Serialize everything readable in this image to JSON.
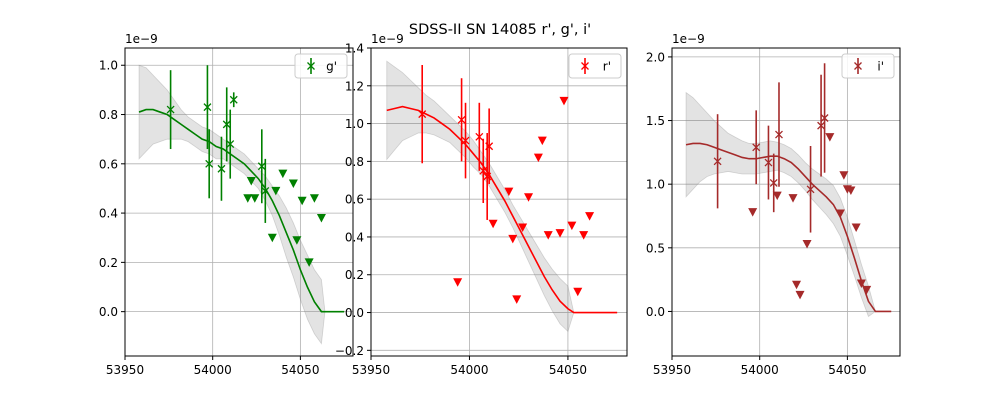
{
  "title": "SDSS-II SN 14085  r', g', i'",
  "chart_data": [
    {
      "type": "scatter",
      "legend": "g'",
      "legend_position": "upper right",
      "color": "#008000",
      "scale_label": "1e−9",
      "grid": true,
      "xlim": [
        53950,
        54080
      ],
      "ylim": [
        -0.18,
        1.07
      ],
      "xticks": [
        53950,
        54000,
        54050
      ],
      "yticks": [
        0.0,
        0.2,
        0.4,
        0.6,
        0.8,
        1.0
      ],
      "ytick_labels": [
        "0.0",
        "0.2",
        "0.4",
        "0.6",
        "0.8",
        "1.0"
      ],
      "detections": [
        {
          "x": 53976,
          "y": 0.82,
          "err": 0.16
        },
        {
          "x": 53997,
          "y": 0.83,
          "err": 0.17
        },
        {
          "x": 53998,
          "y": 0.6,
          "err": 0.14
        },
        {
          "x": 54005,
          "y": 0.58,
          "err": 0.13
        },
        {
          "x": 54008,
          "y": 0.76,
          "err": 0.15
        },
        {
          "x": 54010,
          "y": 0.68,
          "err": 0.14
        },
        {
          "x": 54012,
          "y": 0.86,
          "err": 0.03
        },
        {
          "x": 54028,
          "y": 0.59,
          "err": 0.15
        },
        {
          "x": 54030,
          "y": 0.49,
          "err": 0.13
        }
      ],
      "upper_limits": [
        {
          "x": 54020,
          "y": 0.46
        },
        {
          "x": 54022,
          "y": 0.53
        },
        {
          "x": 54024,
          "y": 0.46
        },
        {
          "x": 54034,
          "y": 0.3
        },
        {
          "x": 54036,
          "y": 0.49
        },
        {
          "x": 54040,
          "y": 0.56
        },
        {
          "x": 54046,
          "y": 0.52
        },
        {
          "x": 54048,
          "y": 0.29
        },
        {
          "x": 54051,
          "y": 0.45
        },
        {
          "x": 54055,
          "y": 0.2
        },
        {
          "x": 54058,
          "y": 0.46
        },
        {
          "x": 54062,
          "y": 0.38
        }
      ],
      "model": {
        "x": [
          53958,
          53962,
          53966,
          53970,
          53974,
          53978,
          53982,
          53986,
          53990,
          53994,
          53998,
          54002,
          54006,
          54010,
          54014,
          54018,
          54022,
          54026,
          54030,
          54034,
          54038,
          54042,
          54046,
          54050,
          54054,
          54058,
          54062,
          54064,
          54068,
          54072,
          54075
        ],
        "y": [
          0.81,
          0.82,
          0.82,
          0.81,
          0.8,
          0.78,
          0.76,
          0.74,
          0.72,
          0.7,
          0.69,
          0.67,
          0.66,
          0.64,
          0.62,
          0.6,
          0.57,
          0.54,
          0.5,
          0.45,
          0.39,
          0.32,
          0.25,
          0.17,
          0.1,
          0.04,
          0.0,
          0.0,
          0.0,
          0.0,
          0.0
        ],
        "band_half_width": [
          0.19,
          0.17,
          0.14,
          0.12,
          0.1,
          0.08,
          0.06,
          0.05,
          0.05,
          0.05,
          0.05,
          0.05,
          0.04,
          0.04,
          0.04,
          0.04,
          0.04,
          0.04,
          0.05,
          0.06,
          0.08,
          0.1,
          0.11,
          0.12,
          0.13,
          0.13,
          0.13,
          0.0,
          0.0,
          0.0,
          0.0
        ]
      }
    },
    {
      "type": "scatter",
      "legend": "r'",
      "legend_position": "upper right",
      "color": "#ff0000",
      "scale_label": "1e−9",
      "grid": true,
      "xlim": [
        53950,
        54080
      ],
      "ylim": [
        -0.23,
        1.4
      ],
      "xticks": [
        53950,
        54000,
        54050
      ],
      "yticks": [
        -0.2,
        0.0,
        0.2,
        0.4,
        0.6,
        0.8,
        1.0,
        1.2,
        1.4
      ],
      "ytick_labels": [
        "−0.2",
        "0.0",
        "0.2",
        "0.4",
        "0.6",
        "0.8",
        "1.0",
        "1.2",
        "1.4"
      ],
      "detections": [
        {
          "x": 53976,
          "y": 1.05,
          "err": 0.26
        },
        {
          "x": 53996,
          "y": 1.02,
          "err": 0.22
        },
        {
          "x": 53998,
          "y": 0.91,
          "err": 0.2
        },
        {
          "x": 54005,
          "y": 0.93,
          "err": 0.18
        },
        {
          "x": 54007,
          "y": 0.75,
          "err": 0.17
        },
        {
          "x": 54009,
          "y": 0.72,
          "err": 0.23
        },
        {
          "x": 54010,
          "y": 0.88,
          "err": 0.2
        }
      ],
      "upper_limits": [
        {
          "x": 53994,
          "y": 0.16
        },
        {
          "x": 54012,
          "y": 0.47
        },
        {
          "x": 54020,
          "y": 0.64
        },
        {
          "x": 54022,
          "y": 0.39
        },
        {
          "x": 54024,
          "y": 0.07
        },
        {
          "x": 54027,
          "y": 0.45
        },
        {
          "x": 54030,
          "y": 0.61
        },
        {
          "x": 54035,
          "y": 0.82
        },
        {
          "x": 54037,
          "y": 0.91
        },
        {
          "x": 54040,
          "y": 0.41
        },
        {
          "x": 54046,
          "y": 0.42
        },
        {
          "x": 54048,
          "y": 1.12
        },
        {
          "x": 54052,
          "y": 0.46
        },
        {
          "x": 54055,
          "y": 0.11
        },
        {
          "x": 54058,
          "y": 0.41
        },
        {
          "x": 54061,
          "y": 0.51
        }
      ],
      "model": {
        "x": [
          53958,
          53962,
          53966,
          53970,
          53974,
          53978,
          53982,
          53986,
          53990,
          53994,
          53998,
          54002,
          54006,
          54010,
          54014,
          54018,
          54022,
          54026,
          54030,
          54034,
          54038,
          54042,
          54046,
          54050,
          54053,
          54056,
          54060,
          54064,
          54068,
          54072,
          54075
        ],
        "y": [
          1.07,
          1.08,
          1.09,
          1.08,
          1.07,
          1.05,
          1.03,
          1.0,
          0.97,
          0.93,
          0.89,
          0.84,
          0.79,
          0.73,
          0.66,
          0.59,
          0.51,
          0.43,
          0.35,
          0.27,
          0.19,
          0.12,
          0.06,
          0.02,
          0.0,
          0.0,
          0.0,
          0.0,
          0.0,
          0.0,
          0.0
        ],
        "band_half_width": [
          0.26,
          0.22,
          0.18,
          0.15,
          0.12,
          0.1,
          0.09,
          0.08,
          0.07,
          0.07,
          0.07,
          0.07,
          0.06,
          0.06,
          0.06,
          0.06,
          0.06,
          0.07,
          0.08,
          0.09,
          0.1,
          0.11,
          0.12,
          0.12,
          0.0,
          0.0,
          0.0,
          0.0,
          0.0,
          0.0,
          0.0
        ]
      }
    },
    {
      "type": "scatter",
      "legend": "i'",
      "legend_position": "upper right",
      "color": "#a52a2a",
      "scale_label": "1e−9",
      "grid": true,
      "xlim": [
        53950,
        54080
      ],
      "ylim": [
        -0.35,
        2.07
      ],
      "xticks": [
        53950,
        54000,
        54050
      ],
      "yticks": [
        0.0,
        0.5,
        1.0,
        1.5,
        2.0
      ],
      "ytick_labels": [
        "0.0",
        "0.5",
        "1.0",
        "1.5",
        "2.0"
      ],
      "detections": [
        {
          "x": 53976,
          "y": 1.18,
          "err": 0.37
        },
        {
          "x": 53998,
          "y": 1.29,
          "err": 0.29
        },
        {
          "x": 54005,
          "y": 1.17,
          "err": 0.29
        },
        {
          "x": 54008,
          "y": 1.01,
          "err": 0.23
        },
        {
          "x": 54011,
          "y": 1.39,
          "err": 0.41
        },
        {
          "x": 54029,
          "y": 0.96,
          "err": 0.34
        },
        {
          "x": 54035,
          "y": 1.46,
          "err": 0.4
        },
        {
          "x": 54037,
          "y": 1.52,
          "err": 0.43
        }
      ],
      "upper_limits": [
        {
          "x": 53996,
          "y": 0.78
        },
        {
          "x": 54010,
          "y": 0.91
        },
        {
          "x": 54019,
          "y": 0.89
        },
        {
          "x": 54021,
          "y": 0.21
        },
        {
          "x": 54023,
          "y": 0.13
        },
        {
          "x": 54027,
          "y": 0.53
        },
        {
          "x": 54040,
          "y": 1.37
        },
        {
          "x": 54046,
          "y": 0.77
        },
        {
          "x": 54048,
          "y": 1.07
        },
        {
          "x": 54050,
          "y": 0.96
        },
        {
          "x": 54052,
          "y": 0.95
        },
        {
          "x": 54055,
          "y": 0.66
        },
        {
          "x": 54058,
          "y": 0.22
        },
        {
          "x": 54061,
          "y": 0.17
        }
      ],
      "model": {
        "x": [
          53958,
          53962,
          53966,
          53970,
          53974,
          53978,
          53982,
          53986,
          53990,
          53994,
          53998,
          54002,
          54006,
          54010,
          54014,
          54018,
          54022,
          54026,
          54030,
          54034,
          54038,
          54042,
          54046,
          54050,
          54054,
          54058,
          54062,
          54066,
          54068,
          54072,
          54075
        ],
        "y": [
          1.31,
          1.32,
          1.32,
          1.31,
          1.29,
          1.27,
          1.25,
          1.23,
          1.21,
          1.2,
          1.2,
          1.21,
          1.22,
          1.22,
          1.2,
          1.17,
          1.12,
          1.06,
          1.0,
          0.95,
          0.9,
          0.84,
          0.74,
          0.59,
          0.42,
          0.24,
          0.08,
          0.0,
          0.0,
          0.0,
          0.0
        ],
        "band_half_width": [
          0.41,
          0.36,
          0.3,
          0.25,
          0.21,
          0.18,
          0.15,
          0.14,
          0.13,
          0.12,
          0.12,
          0.12,
          0.12,
          0.11,
          0.11,
          0.11,
          0.11,
          0.11,
          0.12,
          0.13,
          0.14,
          0.15,
          0.15,
          0.15,
          0.14,
          0.13,
          0.12,
          0.0,
          0.0,
          0.0,
          0.0
        ]
      }
    }
  ]
}
